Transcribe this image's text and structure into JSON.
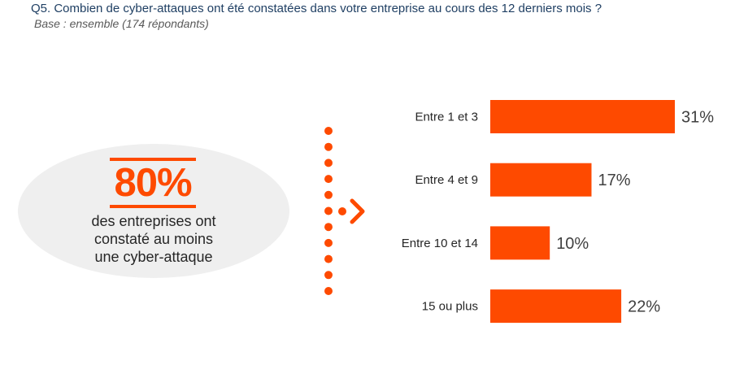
{
  "header": {
    "question": "Q5. Combien de cyber-attaques ont été constatées dans votre entreprise au cours des 12 derniers mois ?",
    "base": "Base : ensemble (174 répondants)"
  },
  "highlight": {
    "value": "80%",
    "caption_lines": [
      "des entreprises ont",
      "constaté au moins",
      "une cyber-attaque"
    ]
  },
  "colors": {
    "accent": "#fe4a00",
    "ellipse": "#efefef",
    "title": "#1f3f63"
  },
  "icons": {
    "divider": "dotted-line",
    "arrow": "chevron-right-icon"
  },
  "chart_data": {
    "type": "bar",
    "orientation": "horizontal",
    "categories": [
      "Entre 1 et 3",
      "Entre 4 et 9",
      "Entre 10 et 14",
      "15 ou plus"
    ],
    "values": [
      31,
      17,
      10,
      22
    ],
    "value_labels": [
      "31%",
      "17%",
      "10%",
      "22%"
    ],
    "unit": "%",
    "xlim": [
      0,
      31
    ],
    "grid": false,
    "legend": "none"
  }
}
